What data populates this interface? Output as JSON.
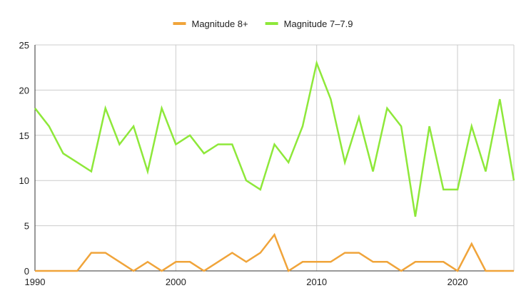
{
  "chart_data": {
    "type": "line",
    "title": "",
    "xlabel": "",
    "ylabel": "",
    "xlim": [
      1990,
      2024
    ],
    "ylim": [
      0,
      25
    ],
    "x_ticks": [
      1990,
      2000,
      2010,
      2020
    ],
    "y_ticks": [
      0,
      5,
      10,
      15,
      20,
      25
    ],
    "grid": true,
    "legend_position": "top",
    "x": [
      1990,
      1991,
      1992,
      1993,
      1994,
      1995,
      1996,
      1997,
      1998,
      1999,
      2000,
      2001,
      2002,
      2003,
      2004,
      2005,
      2006,
      2007,
      2008,
      2009,
      2010,
      2011,
      2012,
      2013,
      2014,
      2015,
      2016,
      2017,
      2018,
      2019,
      2020,
      2021,
      2022,
      2023,
      2024
    ],
    "series": [
      {
        "name": "Magnitude 8+",
        "color": "#f0a43a",
        "values": [
          0,
          0,
          0,
          0,
          2,
          2,
          1,
          0,
          1,
          0,
          1,
          1,
          0,
          1,
          2,
          1,
          2,
          4,
          0,
          1,
          1,
          1,
          2,
          2,
          1,
          1,
          0,
          1,
          1,
          1,
          0,
          3,
          0,
          0,
          0
        ]
      },
      {
        "name": "Magnitude 7–7.9",
        "color": "#8ee83a",
        "values": [
          18,
          16,
          13,
          12,
          11,
          18,
          14,
          16,
          11,
          18,
          14,
          15,
          13,
          14,
          14,
          10,
          9,
          14,
          12,
          16,
          23,
          19,
          12,
          17,
          11,
          18,
          16,
          6,
          16,
          9,
          9,
          16,
          11,
          19,
          10
        ]
      }
    ]
  }
}
